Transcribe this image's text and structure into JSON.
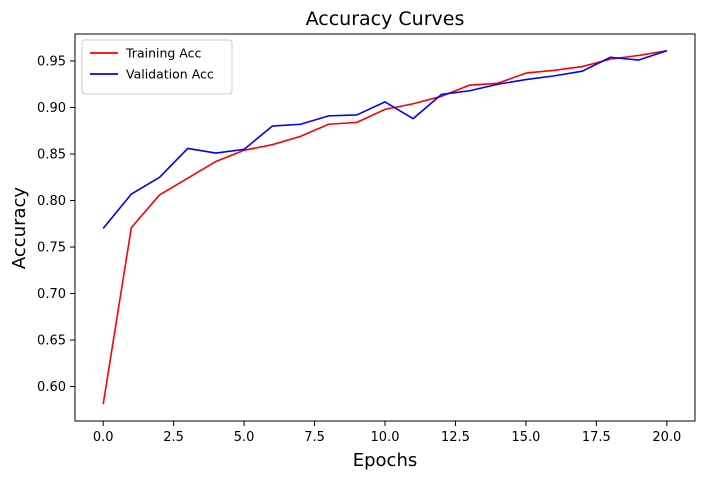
{
  "chart_data": {
    "type": "line",
    "title": "Accuracy Curves",
    "xlabel": "Epochs",
    "ylabel": "Accuracy",
    "xlim": [
      -1,
      21
    ],
    "ylim": [
      0.563,
      0.979
    ],
    "xticks": [
      0.0,
      2.5,
      5.0,
      7.5,
      10.0,
      12.5,
      15.0,
      17.5,
      20.0
    ],
    "xtick_labels": [
      "0.0",
      "2.5",
      "5.0",
      "7.5",
      "10.0",
      "12.5",
      "15.0",
      "17.5",
      "20.0"
    ],
    "yticks": [
      0.6,
      0.65,
      0.7,
      0.75,
      0.8,
      0.85,
      0.9,
      0.95
    ],
    "ytick_labels": [
      "0.60",
      "0.65",
      "0.70",
      "0.75",
      "0.80",
      "0.85",
      "0.90",
      "0.95"
    ],
    "grid": false,
    "legend_position": "top-left",
    "x": [
      0,
      1,
      2,
      3,
      4,
      5,
      6,
      7,
      8,
      9,
      10,
      11,
      12,
      13,
      14,
      15,
      16,
      17,
      18,
      19,
      20
    ],
    "series": [
      {
        "name": "Training Acc",
        "color": "#ff0000",
        "values": [
          0.581,
          0.771,
          0.806,
          0.824,
          0.842,
          0.854,
          0.86,
          0.869,
          0.882,
          0.884,
          0.898,
          0.904,
          0.912,
          0.924,
          0.926,
          0.937,
          0.94,
          0.944,
          0.952,
          0.956,
          0.961
        ]
      },
      {
        "name": "Validation Acc",
        "color": "#0000ff",
        "values": [
          0.77,
          0.807,
          0.825,
          0.856,
          0.851,
          0.855,
          0.88,
          0.882,
          0.891,
          0.892,
          0.906,
          0.888,
          0.914,
          0.918,
          0.925,
          0.93,
          0.934,
          0.939,
          0.954,
          0.951,
          0.961
        ]
      }
    ]
  }
}
